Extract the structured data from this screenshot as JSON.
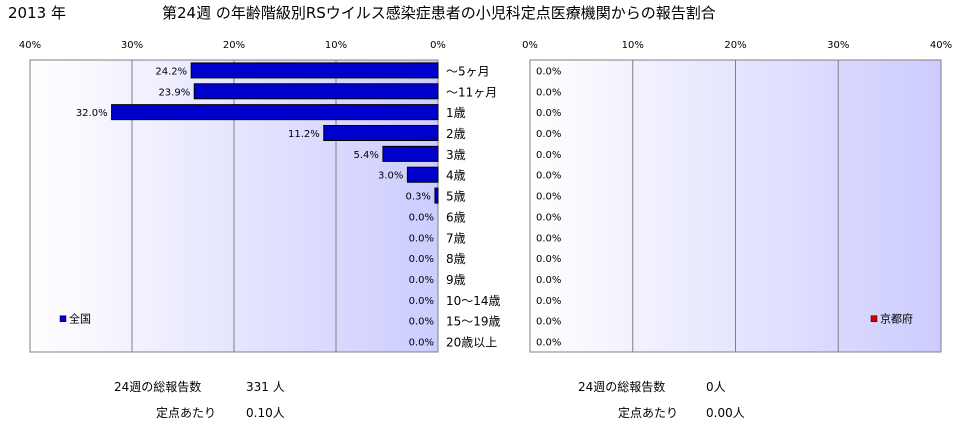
{
  "header": {
    "year": "2013 年",
    "title": "第24週 の年齢階級別RSウイルス感染症患者の小児科定点医療機関からの報告割合"
  },
  "chart_data": [
    {
      "type": "bar",
      "orientation": "horizontal",
      "direction": "right-to-left",
      "region": "全国",
      "legend_position": "bottom-left",
      "categories": [
        "～5ヶ月",
        "～11ヶ月",
        "1歳",
        "2歳",
        "3歳",
        "4歳",
        "5歳",
        "6歳",
        "7歳",
        "8歳",
        "9歳",
        "10～14歳",
        "15～19歳",
        "20歳以上"
      ],
      "series": [
        {
          "name": "全国",
          "color": "#0000cc",
          "values": [
            24.2,
            23.9,
            32.0,
            11.2,
            5.4,
            3.0,
            0.3,
            0.0,
            0.0,
            0.0,
            0.0,
            0.0,
            0.0,
            0.0
          ],
          "labels": [
            "24.2%",
            "23.9%",
            "32.0%",
            "11.2%",
            "5.4%",
            "3.0%",
            "0.3%",
            "0.0%",
            "0.0%",
            "0.0%",
            "0.0%",
            "0.0%",
            "0.0%",
            "0.0%"
          ]
        }
      ],
      "xlim": [
        0,
        40
      ],
      "ticks": [
        40,
        30,
        20,
        10,
        0
      ],
      "tick_labels": [
        "40%",
        "30%",
        "20%",
        "10%",
        "0%"
      ],
      "grid": true
    },
    {
      "type": "bar",
      "orientation": "horizontal",
      "direction": "left-to-right",
      "region": "京都府",
      "legend_position": "bottom-right",
      "categories": [
        "～5ヶ月",
        "～11ヶ月",
        "1歳",
        "2歳",
        "3歳",
        "4歳",
        "5歳",
        "6歳",
        "7歳",
        "8歳",
        "9歳",
        "10～14歳",
        "15～19歳",
        "20歳以上"
      ],
      "series": [
        {
          "name": "京都府",
          "color": "#cc0000",
          "values": [
            0.0,
            0.0,
            0.0,
            0.0,
            0.0,
            0.0,
            0.0,
            0.0,
            0.0,
            0.0,
            0.0,
            0.0,
            0.0,
            0.0
          ],
          "labels": [
            "0.0%",
            "0.0%",
            "0.0%",
            "0.0%",
            "0.0%",
            "0.0%",
            "0.0%",
            "0.0%",
            "0.0%",
            "0.0%",
            "0.0%",
            "0.0%",
            "0.0%",
            "0.0%"
          ]
        }
      ],
      "xlim": [
        0,
        40
      ],
      "ticks": [
        0,
        10,
        20,
        30,
        40
      ],
      "tick_labels": [
        "0%",
        "10%",
        "20%",
        "30%",
        "40%"
      ],
      "grid": true
    }
  ],
  "stats": {
    "national_total_label": "24週の総報告数",
    "national_total_value": "331 人",
    "national_per_label": "定点あたり",
    "national_per_value": "0.10人",
    "kyoto_total_label": "24週の総報告数",
    "kyoto_total_value": "0人",
    "kyoto_per_label": "定点あたり",
    "kyoto_per_value": "0.00人"
  },
  "colors": {
    "plot_bg_top": "#ffffff",
    "plot_bg_bottom": "#ccccff",
    "grid": "#808080"
  }
}
